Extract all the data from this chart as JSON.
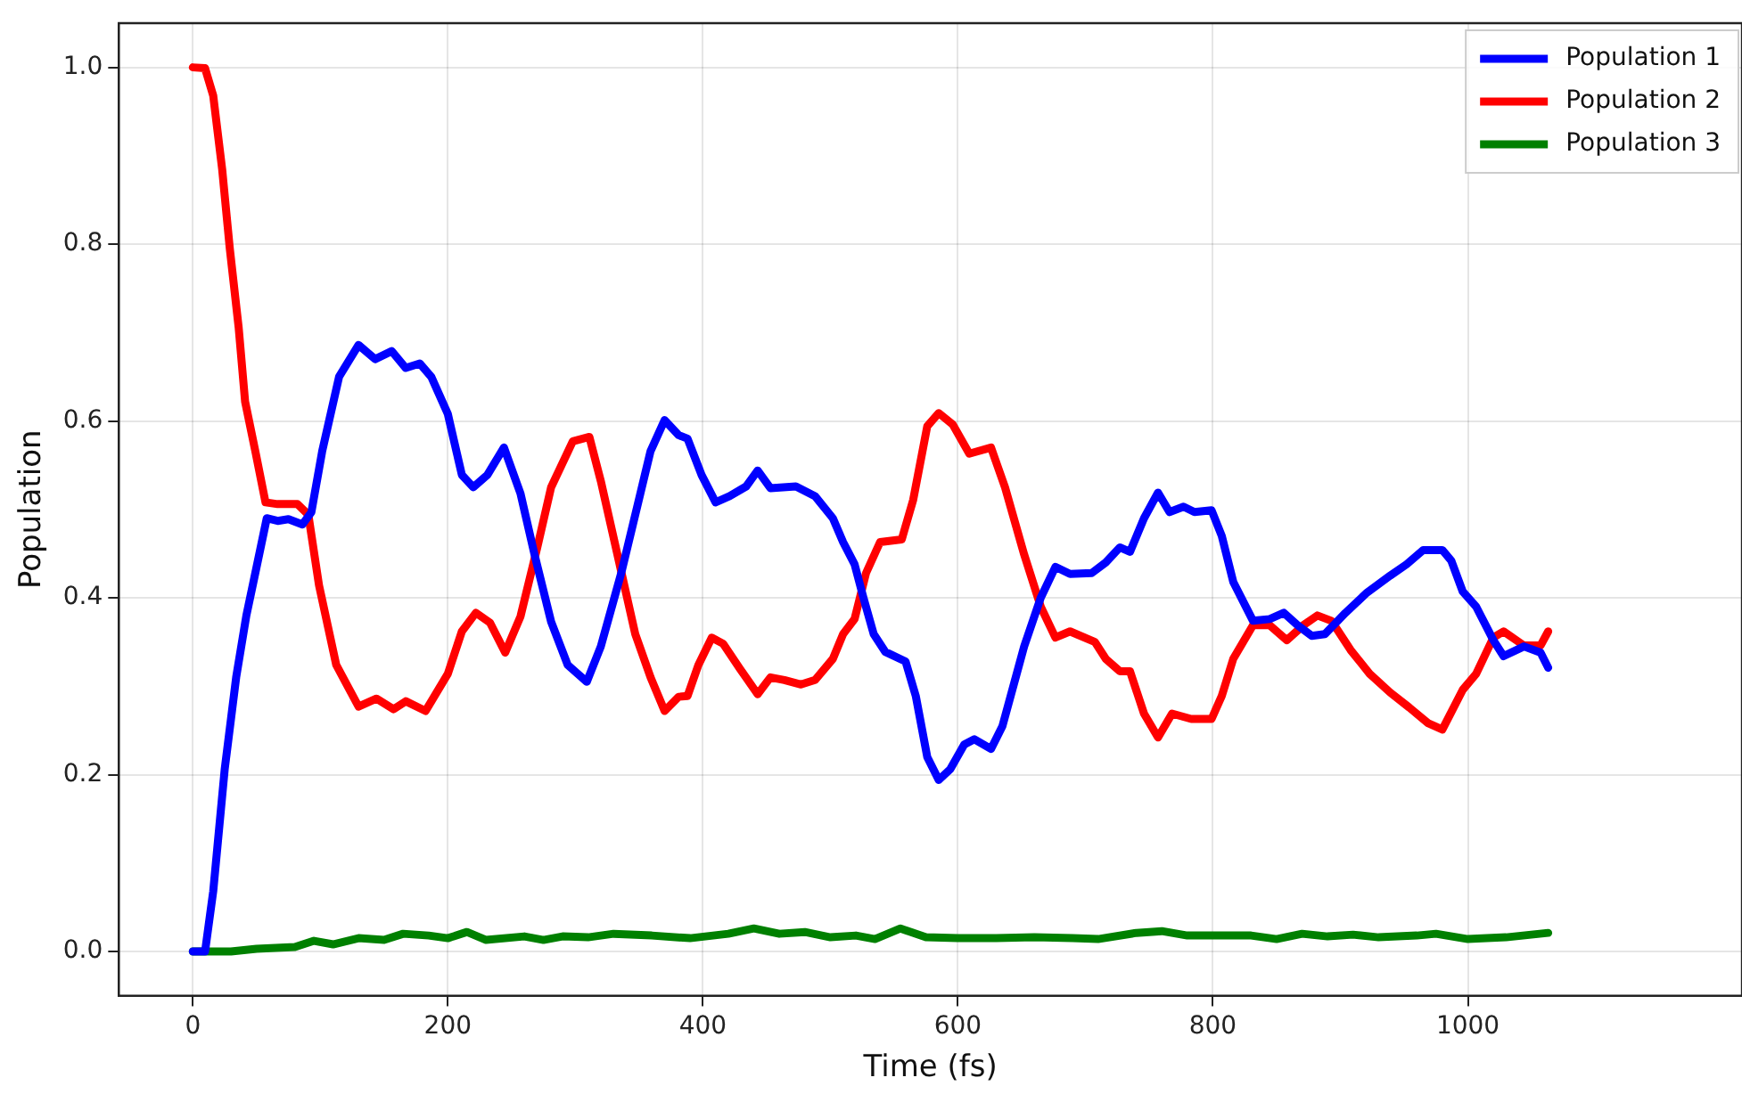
{
  "chart_data": {
    "type": "line",
    "xlabel": "Time (fs)",
    "ylabel": "Population",
    "xlim": [
      -58,
      1215
    ],
    "ylim": [
      -0.05,
      1.05
    ],
    "xticks": [
      0,
      200,
      400,
      600,
      800,
      1000
    ],
    "yticks": [
      {
        "value": 0,
        "label": "0.0"
      },
      0.2,
      0.4,
      0.6,
      0.8,
      {
        "value": 1,
        "label": "1.0"
      }
    ],
    "grid": true,
    "legend": "top right",
    "marker": "none",
    "line_style": "solid",
    "series": [
      {
        "name": "Population 1",
        "color": "#0000ff",
        "x": [
          0,
          9.6,
          16,
          25,
          34,
          42,
          49,
          58,
          66.5,
          75,
          86,
          93,
          101.5,
          114.7,
          130,
          143,
          156,
          167,
          178,
          187,
          200,
          211,
          220,
          231,
          244,
          257,
          268,
          281,
          294,
          309,
          320,
          336,
          351,
          359,
          370,
          381,
          388,
          399,
          410,
          421,
          434,
          443,
          453,
          473,
          488,
          502,
          510,
          519,
          526,
          534,
          543,
          559,
          567,
          576,
          585,
          594,
          605,
          613,
          626,
          635,
          652,
          665,
          676.5,
          688,
          705,
          716,
          727,
          735,
          746,
          757,
          766,
          777,
          785.6,
          799,
          807,
          816,
          831.5,
          844.6,
          855.6,
          866.5,
          877.5,
          888,
          904,
          921,
          939,
          952,
          965,
          980,
          987,
          996,
          1006.5,
          1020,
          1028,
          1044,
          1057,
          1063
        ],
        "values": [
          0,
          0,
          0.068,
          0.206,
          0.31,
          0.38,
          0.428,
          0.49,
          0.487,
          0.489,
          0.483,
          0.497,
          0.566,
          0.65,
          0.686,
          0.67,
          0.679,
          0.66,
          0.665,
          0.65,
          0.608,
          0.539,
          0.525,
          0.539,
          0.57,
          0.518,
          0.449,
          0.373,
          0.324,
          0.305,
          0.345,
          0.428,
          0.518,
          0.566,
          0.601,
          0.584,
          0.58,
          0.539,
          0.508,
          0.515,
          0.526,
          0.544,
          0.524,
          0.526,
          0.515,
          0.49,
          0.463,
          0.438,
          0.4,
          0.359,
          0.339,
          0.328,
          0.289,
          0.22,
          0.194,
          0.206,
          0.234,
          0.24,
          0.229,
          0.255,
          0.345,
          0.4,
          0.435,
          0.427,
          0.428,
          0.44,
          0.457,
          0.452,
          0.49,
          0.519,
          0.497,
          0.503,
          0.497,
          0.499,
          0.47,
          0.418,
          0.374,
          0.376,
          0.383,
          0.369,
          0.357,
          0.359,
          0.383,
          0.406,
          0.425,
          0.438,
          0.454,
          0.454,
          0.442,
          0.407,
          0.39,
          0.352,
          0.334,
          0.345,
          0.338,
          0.321
        ]
      },
      {
        "name": "Population 2",
        "color": "#ff0000",
        "x": [
          0,
          9.6,
          16,
          23,
          29,
          36,
          41,
          49,
          57,
          66.5,
          82,
          90.6,
          99,
          112.5,
          130,
          144,
          157.5,
          167,
          182.5,
          200,
          211,
          222,
          233,
          245,
          257,
          270,
          281,
          298,
          311,
          320,
          333,
          347,
          359,
          370,
          381,
          388,
          396.5,
          407,
          416,
          429,
          443,
          453,
          464,
          477,
          488,
          502,
          510,
          519,
          528,
          539,
          556,
          565,
          576,
          585,
          596,
          609,
          626,
          637,
          652,
          665,
          676.5,
          688,
          707.5,
          716,
          727,
          735,
          746,
          757,
          768,
          783,
          799,
          807,
          816,
          831.5,
          844.6,
          858,
          871,
          882,
          893,
          908,
          923,
          939,
          954,
          969,
          980,
          996,
          1006.5,
          1020,
          1028,
          1044,
          1057,
          1063
        ],
        "values": [
          1.0,
          0.999,
          0.968,
          0.885,
          0.795,
          0.705,
          0.622,
          0.566,
          0.508,
          0.506,
          0.506,
          0.494,
          0.414,
          0.324,
          0.277,
          0.286,
          0.274,
          0.283,
          0.272,
          0.314,
          0.362,
          0.383,
          0.372,
          0.338,
          0.379,
          0.456,
          0.525,
          0.577,
          0.582,
          0.532,
          0.449,
          0.359,
          0.31,
          0.272,
          0.288,
          0.289,
          0.324,
          0.355,
          0.348,
          0.32,
          0.291,
          0.31,
          0.307,
          0.302,
          0.307,
          0.331,
          0.359,
          0.376,
          0.428,
          0.463,
          0.466,
          0.511,
          0.594,
          0.609,
          0.596,
          0.563,
          0.57,
          0.525,
          0.449,
          0.39,
          0.355,
          0.362,
          0.35,
          0.331,
          0.317,
          0.317,
          0.269,
          0.242,
          0.269,
          0.263,
          0.263,
          0.289,
          0.331,
          0.369,
          0.369,
          0.352,
          0.369,
          0.38,
          0.374,
          0.341,
          0.314,
          0.293,
          0.276,
          0.258,
          0.251,
          0.296,
          0.314,
          0.355,
          0.362,
          0.346,
          0.346,
          0.362
        ]
      },
      {
        "name": "Population 3",
        "color": "#008000",
        "x": [
          0,
          30,
          50,
          80,
          95,
          110,
          130,
          150,
          165,
          185,
          200,
          215,
          230,
          260,
          275,
          290,
          310,
          330,
          360,
          390,
          420,
          440,
          460,
          480,
          500,
          520,
          535,
          555,
          575,
          600,
          630,
          660,
          690,
          710,
          740,
          760,
          780,
          800,
          830,
          850,
          870,
          890,
          910,
          930,
          960,
          975,
          1000,
          1030,
          1063
        ],
        "values": [
          0,
          0,
          0.003,
          0.005,
          0.012,
          0.008,
          0.015,
          0.013,
          0.02,
          0.018,
          0.015,
          0.022,
          0.013,
          0.017,
          0.013,
          0.017,
          0.016,
          0.02,
          0.018,
          0.015,
          0.02,
          0.026,
          0.02,
          0.022,
          0.016,
          0.018,
          0.014,
          0.026,
          0.016,
          0.015,
          0.015,
          0.016,
          0.015,
          0.014,
          0.021,
          0.023,
          0.018,
          0.018,
          0.018,
          0.014,
          0.02,
          0.017,
          0.019,
          0.016,
          0.018,
          0.02,
          0.014,
          0.016,
          0.021
        ]
      }
    ]
  }
}
